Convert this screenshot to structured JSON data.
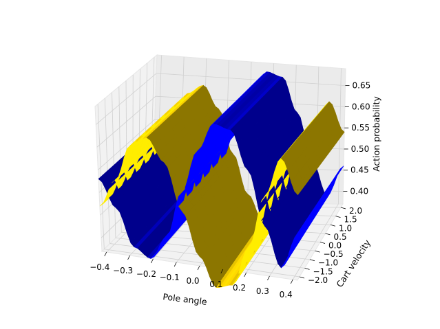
{
  "chart_data": {
    "type": "surface3d",
    "title": "",
    "xlabel": "Pole angle",
    "ylabel": "Cart velocity",
    "zlabel": "Action probability",
    "xlim": [
      -0.42,
      0.42
    ],
    "ylim": [
      -2.2,
      2.2
    ],
    "zlim": [
      0.37,
      0.69
    ],
    "x_ticks": [
      "−0.4",
      "−0.3",
      "−0.2",
      "−0.1",
      "0.0",
      "0.1",
      "0.2",
      "0.3",
      "0.4"
    ],
    "y_ticks": [
      "−2.0",
      "−1.5",
      "−1.0",
      "−0.5",
      "0.0",
      "0.5",
      "1.0",
      "1.5",
      "2.0"
    ],
    "z_ticks": [
      "0.40",
      "0.45",
      "0.50",
      "0.55",
      "0.60",
      "0.65"
    ],
    "grid": true,
    "series": [
      {
        "color": "#0000ff",
        "x_profile": [
          -0.42,
          -0.35,
          -0.28,
          -0.21,
          -0.14,
          -0.07,
          0.0,
          0.07,
          0.14,
          0.21,
          0.28,
          0.35,
          0.42
        ],
        "z_profile": [
          0.53,
          0.47,
          0.39,
          0.37,
          0.42,
          0.52,
          0.61,
          0.67,
          0.66,
          0.58,
          0.47,
          0.39,
          0.46
        ]
      },
      {
        "color": "#ffd700",
        "x_profile": [
          -0.42,
          -0.35,
          -0.28,
          -0.21,
          -0.14,
          -0.07,
          0.0,
          0.07,
          0.14,
          0.21,
          0.28,
          0.35,
          0.42
        ],
        "z_profile": [
          0.47,
          0.53,
          0.61,
          0.63,
          0.58,
          0.48,
          0.39,
          0.33,
          0.34,
          0.42,
          0.53,
          0.61,
          0.54
        ]
      }
    ]
  }
}
